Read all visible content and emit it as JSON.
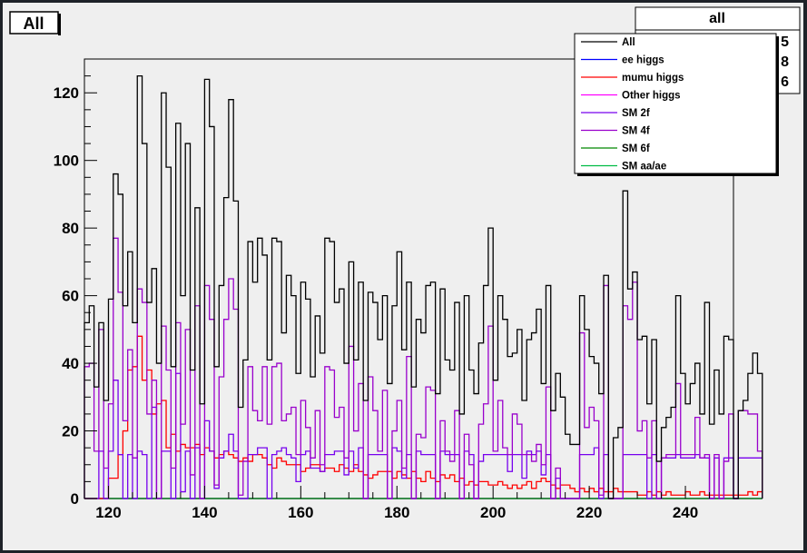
{
  "canvas_title": "All",
  "stats_box": {
    "title": "all",
    "partial_values": [
      "5",
      "8",
      "6"
    ]
  },
  "colors": {
    "background": "#efefef",
    "All": "#000000",
    "ee higgs": "#0000ff",
    "mumu higgs": "#ff0000",
    "Other higgs": "#ff00ff",
    "SM 2f": "#7700ee",
    "SM 4f": "#9900cc",
    "SM 6f": "#008800",
    "SM aa/ae": "#00bb44"
  },
  "chart_data": {
    "type": "line",
    "title": "",
    "xlabel": "",
    "ylabel": "",
    "xlim": [
      115,
      250
    ],
    "ylim": [
      0,
      130
    ],
    "xticks": [
      120,
      140,
      160,
      180,
      200,
      220,
      240
    ],
    "yticks": [
      0,
      20,
      40,
      60,
      80,
      100,
      120
    ],
    "x_bin_edges_start": 115,
    "bin_width": 1,
    "legend_position": "top-right",
    "grid": false,
    "series": [
      {
        "name": "All",
        "values": [
          52,
          57,
          33,
          52,
          29,
          59,
          96,
          90,
          57,
          73,
          52,
          125,
          105,
          58,
          68,
          40,
          120,
          98,
          39,
          111,
          60,
          105,
          38,
          86,
          28,
          124,
          110,
          39,
          63,
          89,
          118,
          88,
          27,
          41,
          76,
          64,
          77,
          72,
          41,
          77,
          76,
          49,
          66,
          60,
          37,
          64,
          59,
          36,
          54,
          43,
          77,
          76,
          58,
          62,
          40,
          70,
          41,
          64,
          29,
          61,
          58,
          47,
          60,
          34,
          57,
          73,
          44,
          64,
          33,
          53,
          49,
          63,
          64,
          31,
          62,
          41,
          38,
          58,
          25,
          60,
          38,
          31,
          46,
          63,
          80,
          35,
          60,
          53,
          42,
          43,
          50,
          29,
          47,
          49,
          56,
          34,
          63,
          26,
          37,
          30,
          19,
          16,
          16,
          60,
          50,
          42,
          40,
          31,
          66,
          0,
          18,
          21,
          91,
          62,
          67,
          47,
          48,
          28,
          47,
          11,
          21,
          24,
          27,
          60,
          37,
          28,
          34,
          40,
          25,
          58,
          22,
          38,
          25,
          48,
          47,
          0,
          26,
          29,
          37,
          43,
          37
        ]
      },
      {
        "name": "SM 4f",
        "values": [
          39,
          40,
          14,
          50,
          9,
          28,
          77,
          61,
          23,
          44,
          12,
          62,
          58,
          25,
          35,
          0,
          51,
          38,
          9,
          52,
          22,
          50,
          7,
          57,
          0,
          63,
          53,
          4,
          36,
          53,
          65,
          56,
          1,
          11,
          39,
          26,
          23,
          39,
          22,
          39,
          40,
          23,
          25,
          27,
          13,
          29,
          21,
          12,
          26,
          10,
          39,
          38,
          24,
          27,
          12,
          45,
          20,
          34,
          0,
          36,
          26,
          14,
          32,
          0,
          20,
          29,
          9,
          42,
          0,
          19,
          18,
          33,
          32,
          0,
          23,
          14,
          11,
          26,
          0,
          19,
          10,
          0,
          22,
          28,
          51,
          14,
          29,
          15,
          13,
          25,
          22,
          13,
          13,
          11,
          16,
          10,
          33,
          0,
          9,
          0,
          0,
          0,
          0,
          49,
          21,
          27,
          23,
          1,
          63,
          0,
          0,
          0,
          57,
          53,
          64,
          20,
          23,
          12,
          23,
          0,
          12,
          13,
          13,
          34,
          13,
          13,
          13,
          24,
          12,
          13,
          0,
          13,
          0,
          11,
          25,
          0,
          26,
          26,
          25,
          25,
          14
        ]
      },
      {
        "name": "SM 2f",
        "values": [
          0,
          0,
          0,
          14,
          0,
          14,
          35,
          13,
          0,
          13,
          0,
          14,
          13,
          0,
          27,
          0,
          14,
          14,
          0,
          37,
          2,
          14,
          0,
          15,
          0,
          23,
          14,
          3,
          12,
          14,
          19,
          14,
          0,
          0,
          13,
          13,
          15,
          15,
          0,
          13,
          14,
          15,
          13,
          12,
          5,
          13,
          14,
          9,
          9,
          8,
          13,
          13,
          14,
          14,
          7,
          14,
          9,
          15,
          0,
          13,
          13,
          13,
          13,
          0,
          15,
          14,
          6,
          13,
          0,
          14,
          13,
          13,
          13,
          0,
          14,
          13,
          13,
          13,
          0,
          14,
          13,
          0,
          11,
          13,
          13,
          13,
          13,
          13,
          8,
          13,
          13,
          6,
          14,
          13,
          14,
          7,
          13,
          0,
          6,
          0,
          0,
          0,
          0,
          13,
          13,
          13,
          15,
          0,
          13,
          0,
          0,
          0,
          13,
          13,
          13,
          13,
          13,
          0,
          13,
          0,
          12,
          12,
          12,
          13,
          12,
          12,
          12,
          13,
          12,
          12,
          0,
          12,
          0,
          12,
          12,
          0,
          12,
          12,
          12,
          12,
          12
        ]
      },
      {
        "name": "mumu higgs",
        "values": [
          0,
          0,
          0,
          0,
          0,
          6,
          6,
          13,
          20,
          38,
          39,
          48,
          35,
          38,
          25,
          28,
          29,
          15,
          19,
          14,
          16,
          15,
          15,
          16,
          13,
          15,
          14,
          12,
          13,
          14,
          13,
          12,
          11,
          12,
          11,
          13,
          13,
          12,
          10,
          9,
          12,
          11,
          10,
          10,
          10,
          8,
          9,
          10,
          10,
          8,
          9,
          9,
          8,
          10,
          9,
          8,
          10,
          8,
          7,
          6,
          7,
          8,
          8,
          8,
          6,
          8,
          7,
          6,
          8,
          6,
          5,
          8,
          6,
          5,
          7,
          6,
          7,
          5,
          6,
          4,
          5,
          4,
          5,
          5,
          4,
          4,
          5,
          4,
          3,
          4,
          3,
          4,
          5,
          3,
          5,
          6,
          5,
          4,
          3,
          4,
          4,
          3,
          2,
          3,
          2,
          3,
          2,
          3,
          2,
          2,
          3,
          2,
          2,
          2,
          2,
          1,
          1,
          2,
          1,
          2,
          1,
          2,
          1,
          1,
          1,
          2,
          1,
          1,
          2,
          1,
          1,
          1,
          1,
          1,
          1,
          1,
          1,
          1,
          2,
          1,
          2
        ]
      },
      {
        "name": "SM 6f",
        "values": [
          0,
          0,
          0,
          0,
          0,
          0,
          0,
          0,
          0,
          0,
          0,
          0,
          0,
          0,
          0,
          0,
          0,
          0,
          0,
          0,
          0,
          0,
          0,
          0,
          0,
          0,
          0,
          0,
          0,
          0,
          0,
          0,
          0,
          0,
          0,
          0,
          0,
          0,
          0,
          0,
          0,
          0,
          0,
          0,
          0,
          0,
          0,
          0,
          0,
          0,
          0,
          0,
          0,
          0,
          0,
          0,
          0,
          0,
          0,
          0,
          0,
          0,
          0,
          0,
          0,
          0,
          0,
          0,
          0,
          0,
          0,
          0,
          0,
          0,
          0,
          0,
          0,
          0,
          0,
          0,
          0,
          0,
          0,
          0,
          0,
          0,
          0,
          0,
          0,
          0,
          0,
          0,
          0,
          0,
          0,
          0,
          0,
          0,
          0,
          0,
          0,
          0,
          0,
          0,
          0,
          0,
          0,
          0,
          0,
          0,
          0,
          0,
          0,
          0,
          0,
          0,
          0,
          0,
          0,
          0,
          0,
          0,
          0,
          0,
          0,
          0,
          0,
          0,
          0,
          0,
          0,
          0,
          0,
          0,
          0,
          0,
          0,
          0,
          0,
          0,
          0
        ]
      },
      {
        "name": "SM aa/ae",
        "values": [
          0,
          0,
          0,
          0,
          0,
          0,
          0,
          0,
          0,
          0,
          0,
          0,
          0,
          0,
          0,
          0,
          0,
          0,
          0,
          0,
          0,
          0,
          0,
          0,
          0,
          0,
          0,
          0,
          0,
          0,
          0,
          0,
          0,
          0,
          0,
          0,
          0,
          0,
          0,
          0,
          0,
          0,
          0,
          0,
          0,
          0,
          0,
          0,
          0,
          0,
          0,
          0,
          0,
          0,
          0,
          0,
          0,
          0,
          0,
          0,
          0,
          0,
          0,
          0,
          0,
          0,
          0,
          0,
          0,
          0,
          0,
          0,
          0,
          0,
          0,
          0,
          0,
          0,
          0,
          0,
          0,
          0,
          0,
          0,
          0,
          0,
          0,
          0,
          0,
          0,
          0,
          0,
          0,
          0,
          0,
          0,
          0,
          0,
          0,
          0,
          0,
          0,
          0,
          0,
          0,
          0,
          0,
          0,
          0,
          0,
          0,
          0,
          0,
          0,
          0,
          0,
          0,
          0,
          0,
          0,
          0,
          0,
          0,
          0,
          0,
          0,
          0,
          0,
          0,
          0,
          0,
          0,
          0,
          0,
          0,
          0,
          0,
          0,
          0,
          0,
          0
        ]
      },
      {
        "name": "Other higgs",
        "values": [
          0,
          0,
          0,
          0,
          0,
          0,
          0,
          0,
          0,
          0,
          0,
          0,
          0,
          0,
          0,
          0,
          0,
          0,
          0,
          0,
          0,
          0,
          0,
          0,
          0,
          0,
          0,
          0,
          0,
          0,
          0,
          0,
          0,
          0,
          0,
          0,
          0,
          0,
          0,
          0,
          0,
          0,
          0,
          0,
          0,
          0,
          0,
          0,
          0,
          0,
          0,
          0,
          0,
          0,
          0,
          0,
          0,
          0,
          0,
          0,
          0,
          0,
          0,
          0,
          0,
          0,
          0,
          0,
          0,
          0,
          0,
          0,
          0,
          0,
          0,
          0,
          0,
          0,
          0,
          0,
          0,
          0,
          0,
          0,
          0,
          0,
          0,
          0,
          0,
          0,
          0,
          0,
          0,
          0,
          0,
          0,
          0,
          0,
          0,
          0,
          0,
          0,
          0,
          0,
          0,
          0,
          0,
          0,
          0,
          0,
          0,
          0,
          0,
          0,
          0,
          0,
          0,
          0,
          0,
          0,
          0,
          0,
          0,
          0,
          0,
          0,
          0,
          0,
          0,
          0,
          0,
          0,
          0,
          0,
          0,
          0,
          0,
          0,
          0,
          0,
          0
        ]
      },
      {
        "name": "ee higgs",
        "values": [
          0,
          0,
          0,
          0,
          0,
          0,
          0,
          0,
          0,
          0,
          0,
          0,
          0,
          0,
          0,
          0,
          0,
          0,
          0,
          0,
          0,
          0,
          0,
          0,
          0,
          0,
          0,
          0,
          0,
          0,
          0,
          0,
          0,
          0,
          0,
          0,
          0,
          0,
          0,
          0,
          0,
          0,
          0,
          0,
          0,
          0,
          0,
          0,
          0,
          0,
          0,
          0,
          0,
          0,
          0,
          0,
          0,
          0,
          0,
          0,
          0,
          0,
          0,
          0,
          0,
          0,
          0,
          0,
          0,
          0,
          0,
          0,
          0,
          0,
          0,
          0,
          0,
          0,
          0,
          0,
          0,
          0,
          0,
          0,
          0,
          0,
          0,
          0,
          0,
          0,
          0,
          0,
          0,
          0,
          0,
          0,
          0,
          0,
          0,
          0,
          0,
          0,
          0,
          0,
          0,
          0,
          0,
          0,
          0,
          0,
          0,
          0,
          0,
          0,
          0,
          0,
          0,
          0,
          0,
          0,
          0,
          0,
          0,
          0,
          0,
          0,
          0,
          0,
          0,
          0,
          0,
          0,
          0,
          0,
          0,
          0,
          0,
          0,
          0,
          0,
          0
        ]
      }
    ],
    "legend_order": [
      "All",
      "ee higgs",
      "mumu higgs",
      "Other higgs",
      "SM 2f",
      "SM 4f",
      "SM 6f",
      "SM aa/ae"
    ]
  }
}
